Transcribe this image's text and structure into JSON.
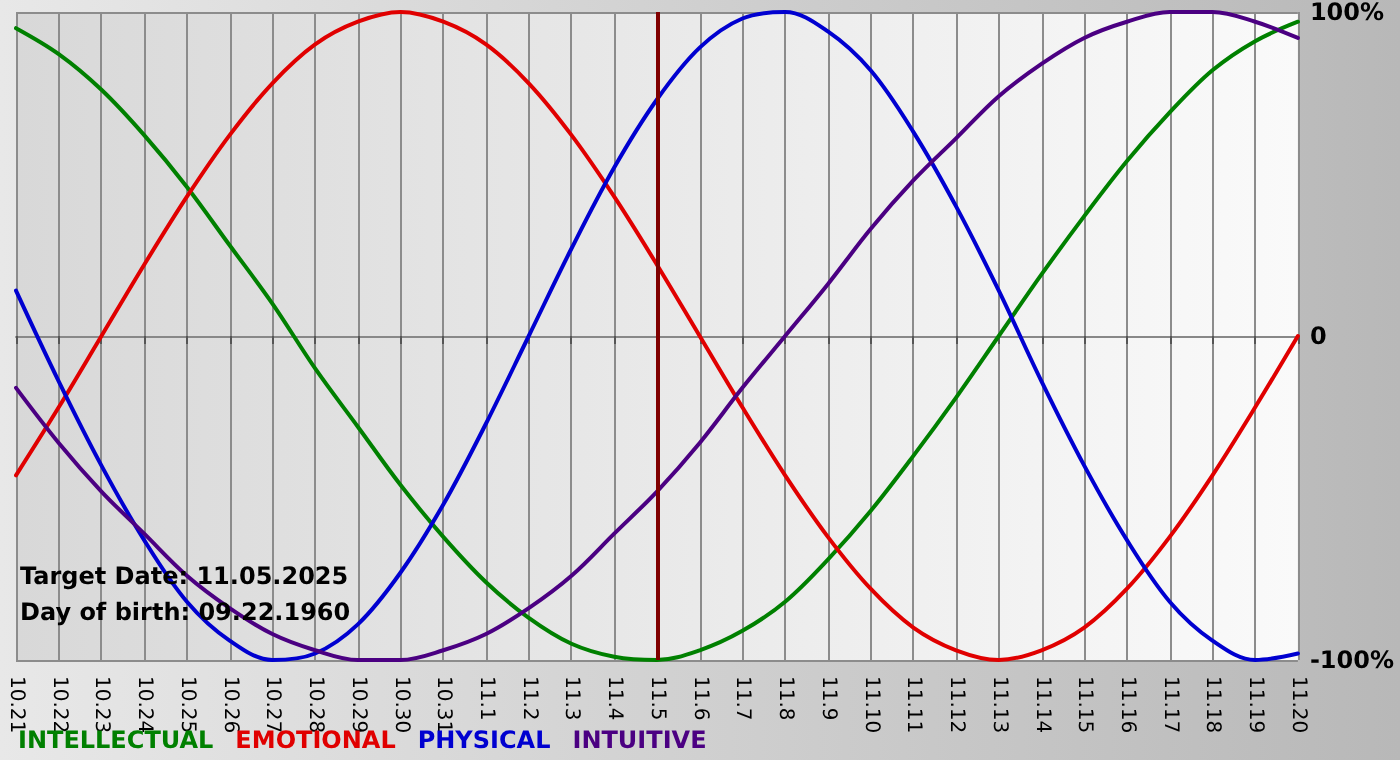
{
  "chart_data": {
    "type": "line",
    "categories": [
      "10.21",
      "10.22",
      "10.23",
      "10.24",
      "10.25",
      "10.26",
      "10.27",
      "10.28",
      "10.29",
      "10.30",
      "10.31",
      "11.1",
      "11.2",
      "11.3",
      "11.4",
      "11.5",
      "11.6",
      "11.7",
      "11.8",
      "11.9",
      "11.10",
      "11.11",
      "11.12",
      "11.13",
      "11.14",
      "11.15",
      "11.16",
      "11.17",
      "11.18",
      "11.19",
      "11.20"
    ],
    "series": [
      {
        "name": "INTELLECTUAL",
        "color": "#008000",
        "values": [
          95,
          87,
          76,
          62,
          46,
          28,
          10,
          -10,
          -28,
          -46,
          -62,
          -76,
          -87,
          -95,
          -99,
          -100,
          -97,
          -91,
          -82,
          -69,
          -54,
          -37,
          -19,
          0,
          19,
          37,
          54,
          69,
          82,
          91,
          97
        ]
      },
      {
        "name": "EMOTIONAL",
        "color": "#e00000",
        "values": [
          -43,
          -22,
          0,
          22,
          43,
          62,
          78,
          90,
          97,
          100,
          97,
          90,
          78,
          62,
          43,
          22,
          0,
          -22,
          -43,
          -62,
          -78,
          -90,
          -97,
          -100,
          -97,
          -90,
          -78,
          -62,
          -43,
          -22,
          0
        ]
      },
      {
        "name": "PHYSICAL",
        "color": "#0000d0",
        "values": [
          14,
          -14,
          -40,
          -63,
          -82,
          -94,
          -100,
          -98,
          -89,
          -73,
          -52,
          -27,
          0,
          27,
          52,
          73,
          89,
          98,
          100,
          94,
          82,
          63,
          40,
          14,
          -14,
          -40,
          -63,
          -82,
          -94,
          -100,
          -98
        ]
      },
      {
        "name": "INTUITIVE",
        "color": "#4b0082",
        "values": [
          -16,
          -33,
          -48,
          -61,
          -74,
          -84,
          -92,
          -97,
          -100,
          -100,
          -97,
          -92,
          -84,
          -74,
          -61,
          -48,
          -33,
          -16,
          0,
          16,
          33,
          48,
          61,
          74,
          84,
          92,
          97,
          100,
          100,
          97,
          92
        ]
      }
    ],
    "ylim": [
      -100,
      100
    ],
    "yticks": [
      {
        "value": -100,
        "label": "-100%"
      },
      0,
      {
        "value": 100,
        "label": "100%"
      }
    ],
    "grid": true,
    "legend": "bottom left",
    "marker": "none",
    "line_style": "solid",
    "ref_lines": [
      {
        "axis": "x",
        "value": "11.5",
        "color": "#800000"
      }
    ],
    "annotations": [
      "Target Date: 11.05.2025",
      "Day of birth: 09.22.1960"
    ]
  }
}
